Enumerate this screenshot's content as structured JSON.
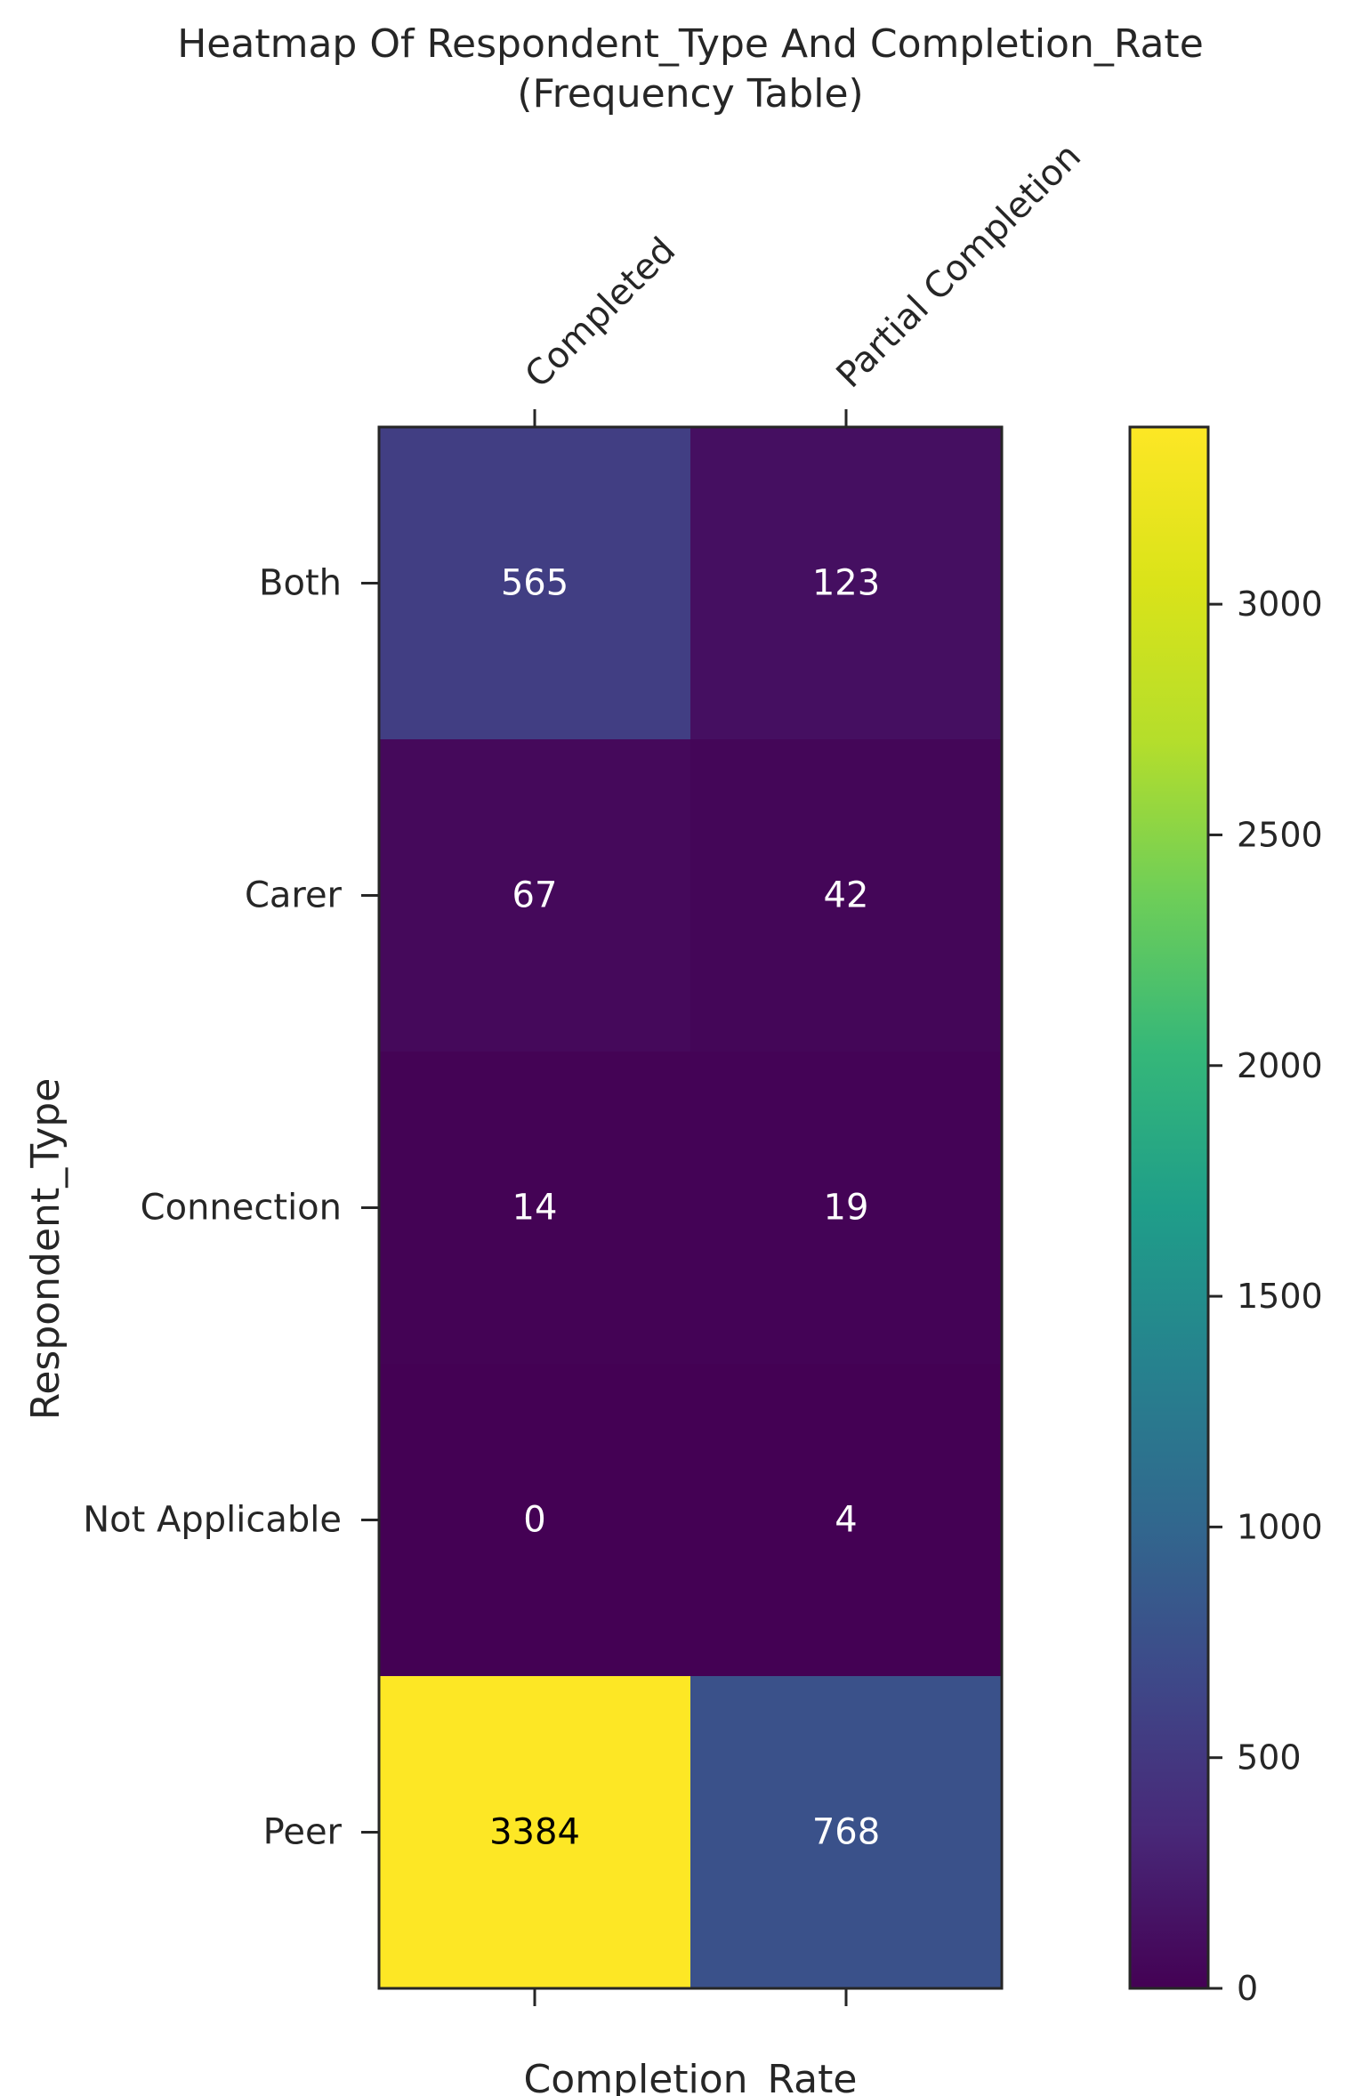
{
  "chart_data": {
    "type": "heatmap",
    "title_lines": [
      "Heatmap Of Respondent_Type And Completion_Rate",
      "(Frequency Table)"
    ],
    "xlabel": "Completion_Rate",
    "ylabel": "Respondent_Type",
    "columns": [
      "Completed",
      "Partial Completion"
    ],
    "rows": [
      "Both",
      "Carer",
      "Connection",
      "Not Applicable",
      "Peer"
    ],
    "values": [
      [
        565,
        123
      ],
      [
        67,
        42
      ],
      [
        14,
        19
      ],
      [
        0,
        4
      ],
      [
        3384,
        768
      ]
    ],
    "colormap": "viridis",
    "colorbar": {
      "min": 0,
      "max": 3384,
      "ticks": [
        0,
        500,
        1000,
        1500,
        2000,
        2500,
        3000
      ]
    },
    "x_tick_position": "top-and-bottom",
    "grid": false
  }
}
